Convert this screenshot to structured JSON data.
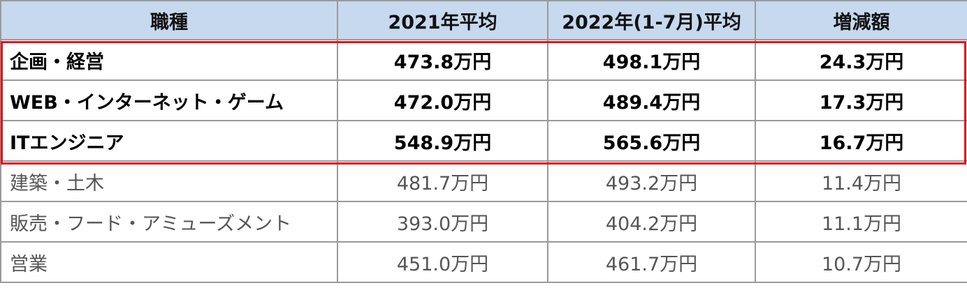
{
  "table": {
    "header": [
      "職種",
      "2021年平均",
      "2022年(1-7月)平均",
      "増減額"
    ],
    "rows": [
      [
        "企画・経営",
        "473.8万円",
        "498.1万円",
        "24.3万円"
      ],
      [
        "WEB・インターネット・ゲーム",
        "472.0万円",
        "489.4万円",
        "17.3万円"
      ],
      [
        "ITエンジニア",
        "548.9万円",
        "565.6万円",
        "16.7万円"
      ],
      [
        "建築・土木",
        "481.7万円",
        "493.2万円",
        "11.4万円"
      ],
      [
        "販売・フード・アミューズメント",
        "393.0万円",
        "404.2万円",
        "11.1万円"
      ],
      [
        "営業",
        "451.0万円",
        "461.7万円",
        "10.7万円"
      ]
    ]
  }
}
